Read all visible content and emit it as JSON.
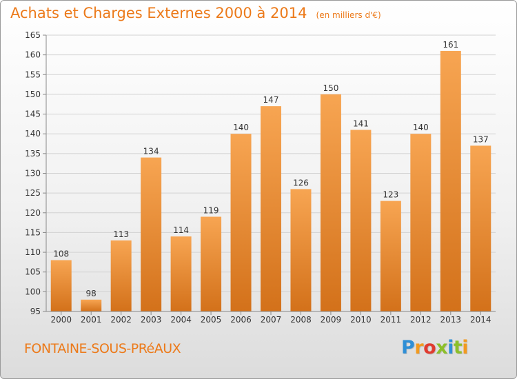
{
  "header": {
    "title": "Achats et Charges Externes 2000 à 2014",
    "unit": "(en milliers d'€)"
  },
  "footer": {
    "town": "FONTAINE-SOUS-PRéAUX",
    "brand": {
      "text": "Proxiti",
      "letters": [
        "P",
        "r",
        "o",
        "x",
        "i",
        "t",
        "i"
      ],
      "colors": [
        "#2f8fd6",
        "#f29a1f",
        "#e03b2f",
        "#8cbf2a",
        "#2f8fd6",
        "#8cbf2a",
        "#f29a1f"
      ]
    }
  },
  "chart_data": {
    "type": "bar",
    "categories": [
      "2000",
      "2001",
      "2002",
      "2003",
      "2004",
      "2005",
      "2006",
      "2007",
      "2008",
      "2009",
      "2010",
      "2011",
      "2012",
      "2013",
      "2014"
    ],
    "values": [
      108,
      98,
      113,
      134,
      114,
      119,
      140,
      147,
      126,
      150,
      141,
      123,
      140,
      161,
      137
    ],
    "data_labels": [
      "108",
      "98",
      "113",
      "134",
      "114",
      "119",
      "140",
      "147",
      "126",
      "150",
      "141",
      "123",
      "140",
      "161",
      "137"
    ],
    "yticks": [
      95,
      100,
      105,
      110,
      115,
      120,
      125,
      130,
      135,
      140,
      145,
      150,
      155,
      160,
      165
    ],
    "ytick_labels": [
      "95",
      "100",
      "105",
      "110",
      "115",
      "120",
      "125",
      "130",
      "135",
      "140",
      "145",
      "150",
      "155",
      "160",
      "165"
    ],
    "ylim": [
      95,
      165
    ],
    "grid": true,
    "legend": false,
    "colors": {
      "bar_top": "#f7a552",
      "bar_bottom": "#d3711a",
      "text": "#333333",
      "axis": "#888888"
    }
  }
}
